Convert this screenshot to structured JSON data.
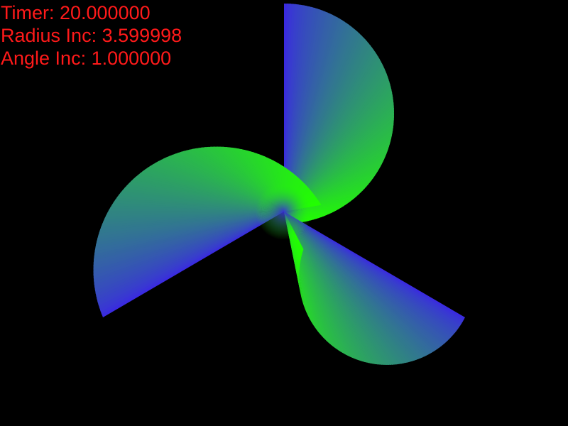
{
  "window": {
    "background_color": "#000000"
  },
  "hud": {
    "color": "#ff1a1a",
    "timer": "Timer: 20.000000",
    "radius_inc": "Radius Inc: 3.599998",
    "angle_inc": "Angle Inc: 1.000000"
  },
  "scene": {
    "shape": "triangle-swirl",
    "blades": 3,
    "edge_color": "#3a2be0",
    "center_color": "#22ff00"
  }
}
